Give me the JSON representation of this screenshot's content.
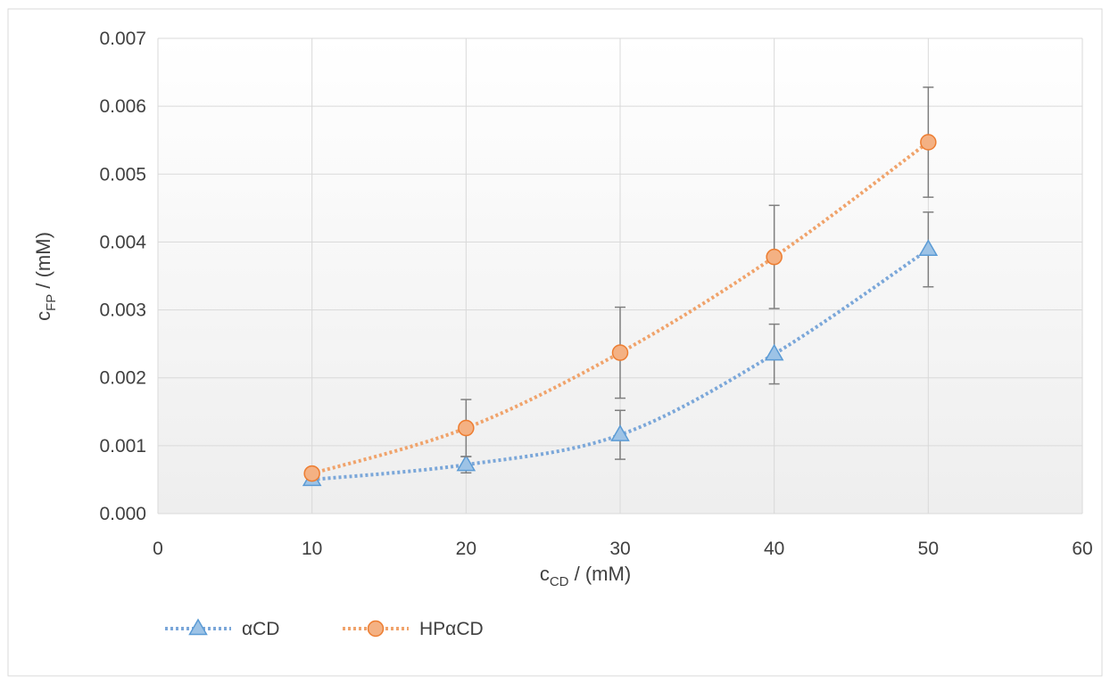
{
  "chart_data": {
    "type": "line",
    "title": "",
    "xlabel": {
      "main": "c",
      "sub": "CD",
      "rest": " /  (mM)"
    },
    "ylabel": {
      "main": "c",
      "sub": "FP",
      "rest": "  / (mM)"
    },
    "xlim": [
      0,
      60
    ],
    "ylim": [
      0,
      0.007
    ],
    "x_ticks": [
      "0",
      "10",
      "20",
      "30",
      "40",
      "50",
      "60"
    ],
    "y_ticks": [
      "0.000",
      "0.001",
      "0.002",
      "0.003",
      "0.004",
      "0.005",
      "0.006",
      "0.007"
    ],
    "grid": true,
    "legend_position": "bottom-left",
    "series": [
      {
        "name": "αCD",
        "color": "#7ba7d9",
        "marker": "triangle",
        "marker_fill": "#9dc3e6",
        "marker_edge": "#5b9bd5",
        "x": [
          10,
          20,
          30,
          40,
          50
        ],
        "y": [
          0.0005,
          0.00072,
          0.00116,
          0.00235,
          0.00389
        ],
        "error": [
          0.0,
          0.00012,
          0.00036,
          0.00044,
          0.00055
        ]
      },
      {
        "name": "HPαCD",
        "color": "#f0a36b",
        "marker": "circle",
        "marker_fill": "#f4b183",
        "marker_edge": "#ed7d31",
        "x": [
          10,
          20,
          30,
          40,
          50
        ],
        "y": [
          0.00059,
          0.00126,
          0.00237,
          0.00378,
          0.00547
        ],
        "error": [
          0.0,
          0.00042,
          0.00067,
          0.00076,
          0.00081
        ]
      }
    ]
  }
}
